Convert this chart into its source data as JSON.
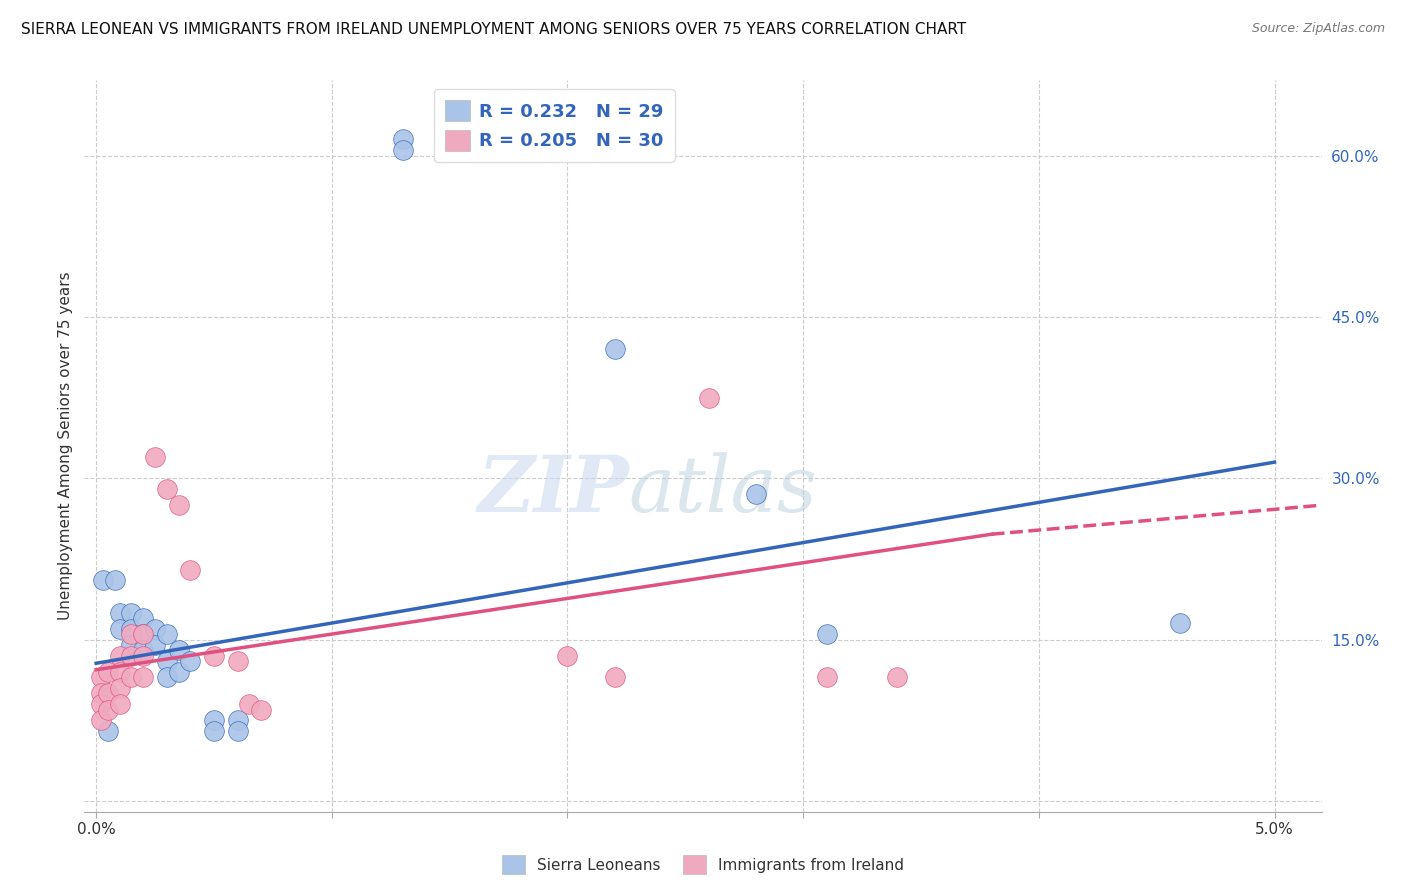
{
  "title": "SIERRA LEONEAN VS IMMIGRANTS FROM IRELAND UNEMPLOYMENT AMONG SENIORS OVER 75 YEARS CORRELATION CHART",
  "source": "Source: ZipAtlas.com",
  "ylabel": "Unemployment Among Seniors over 75 years",
  "x_ticks": [
    0.0,
    0.01,
    0.02,
    0.03,
    0.04,
    0.05
  ],
  "x_tick_labels": [
    "0.0%",
    "",
    "",
    "",
    "",
    "5.0%"
  ],
  "y_ticks": [
    0.0,
    0.15,
    0.3,
    0.45,
    0.6
  ],
  "y_tick_labels_right": [
    "",
    "15.0%",
    "30.0%",
    "45.0%",
    "60.0%"
  ],
  "xlim": [
    -0.0005,
    0.052
  ],
  "ylim": [
    -0.01,
    0.67
  ],
  "background_color": "#ffffff",
  "grid_color": "#cccccc",
  "watermark_zip": "ZIP",
  "watermark_atlas": "atlas",
  "legend_label1": "Sierra Leoneans",
  "legend_label2": "Immigrants from Ireland",
  "color_blue": "#aac4e8",
  "color_pink": "#f0aac0",
  "line_color_blue": "#3366bb",
  "line_color_pink": "#e05080",
  "blue_scatter": [
    [
      0.0003,
      0.205
    ],
    [
      0.0008,
      0.205
    ],
    [
      0.001,
      0.175
    ],
    [
      0.001,
      0.16
    ],
    [
      0.0015,
      0.175
    ],
    [
      0.0015,
      0.16
    ],
    [
      0.0015,
      0.145
    ],
    [
      0.002,
      0.17
    ],
    [
      0.002,
      0.155
    ],
    [
      0.002,
      0.14
    ],
    [
      0.0025,
      0.16
    ],
    [
      0.0025,
      0.145
    ],
    [
      0.003,
      0.155
    ],
    [
      0.003,
      0.13
    ],
    [
      0.003,
      0.115
    ],
    [
      0.0035,
      0.14
    ],
    [
      0.0035,
      0.12
    ],
    [
      0.004,
      0.13
    ],
    [
      0.005,
      0.075
    ],
    [
      0.005,
      0.065
    ],
    [
      0.006,
      0.075
    ],
    [
      0.006,
      0.065
    ],
    [
      0.013,
      0.615
    ],
    [
      0.013,
      0.605
    ],
    [
      0.022,
      0.42
    ],
    [
      0.028,
      0.285
    ],
    [
      0.031,
      0.155
    ],
    [
      0.046,
      0.165
    ],
    [
      0.0005,
      0.065
    ]
  ],
  "pink_scatter": [
    [
      0.0002,
      0.115
    ],
    [
      0.0002,
      0.1
    ],
    [
      0.0002,
      0.09
    ],
    [
      0.0002,
      0.075
    ],
    [
      0.0005,
      0.12
    ],
    [
      0.0005,
      0.1
    ],
    [
      0.0005,
      0.085
    ],
    [
      0.001,
      0.135
    ],
    [
      0.001,
      0.12
    ],
    [
      0.001,
      0.105
    ],
    [
      0.001,
      0.09
    ],
    [
      0.0015,
      0.155
    ],
    [
      0.0015,
      0.135
    ],
    [
      0.0015,
      0.115
    ],
    [
      0.002,
      0.155
    ],
    [
      0.002,
      0.135
    ],
    [
      0.002,
      0.115
    ],
    [
      0.0025,
      0.32
    ],
    [
      0.003,
      0.29
    ],
    [
      0.0035,
      0.275
    ],
    [
      0.004,
      0.215
    ],
    [
      0.005,
      0.135
    ],
    [
      0.006,
      0.13
    ],
    [
      0.0065,
      0.09
    ],
    [
      0.007,
      0.085
    ],
    [
      0.02,
      0.135
    ],
    [
      0.022,
      0.115
    ],
    [
      0.026,
      0.375
    ],
    [
      0.031,
      0.115
    ],
    [
      0.034,
      0.115
    ]
  ],
  "blue_line": [
    [
      0.0,
      0.128
    ],
    [
      0.05,
      0.315
    ]
  ],
  "pink_line_solid": [
    [
      0.0,
      0.122
    ],
    [
      0.038,
      0.248
    ]
  ],
  "pink_line_dashed": [
    [
      0.038,
      0.248
    ],
    [
      0.052,
      0.275
    ]
  ]
}
